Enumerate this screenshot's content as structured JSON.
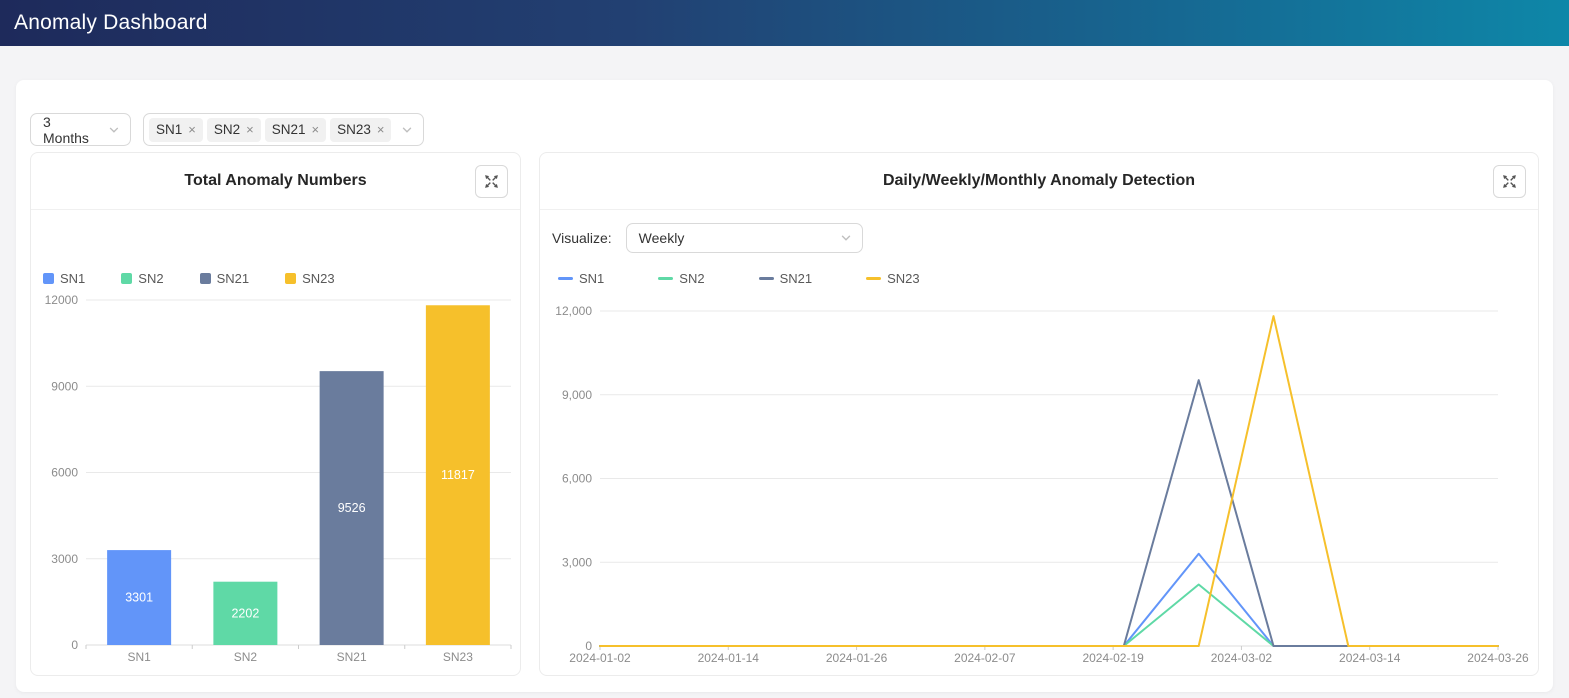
{
  "header": {
    "title": "Anomaly Dashboard"
  },
  "filters": {
    "period": {
      "value": "3 Months",
      "chevron_icon": "chevron-down"
    },
    "series": {
      "tags": [
        "SN1",
        "SN2",
        "SN21",
        "SN23"
      ],
      "remove_icon": "×",
      "chevron_icon": "chevron-down"
    }
  },
  "cards": {
    "total": {
      "title": "Total Anomaly Numbers",
      "expand_icon": "fullscreen-expand"
    },
    "detection": {
      "title": "Daily/Weekly/Monthly Anomaly Detection",
      "visualize_label": "Visualize:",
      "visualize_value": "Weekly",
      "expand_icon": "fullscreen-expand"
    }
  },
  "palette": {
    "SN1": "#6295F9",
    "SN2": "#5FD9A6",
    "SN21": "#6A7C9D",
    "SN23": "#F6C02B"
  },
  "colors": {
    "grid": "#e9e9e9",
    "axis_line": "#dddddd",
    "tick": "#cccccc",
    "axis_text": "#8c8c8c",
    "bar_value_text": "#ffffff"
  },
  "chart_data": [
    {
      "type": "bar",
      "title": "Total Anomaly Numbers",
      "categories": [
        "SN1",
        "SN2",
        "SN21",
        "SN23"
      ],
      "values": [
        3301,
        2202,
        9526,
        11817
      ],
      "data_labels": [
        "3301",
        "2202",
        "9526",
        "11817"
      ],
      "legend": [
        "SN1",
        "SN2",
        "SN21",
        "SN23"
      ],
      "legend_position": "top-left",
      "xlabel": "",
      "ylabel": "",
      "ylim": [
        0,
        12000
      ],
      "yticks": [
        0,
        3000,
        6000,
        9000,
        12000
      ],
      "ytick_labels": [
        "0",
        "3000",
        "6000",
        "9000",
        "12000"
      ],
      "grid": true
    },
    {
      "type": "line",
      "title": "Daily/Weekly/Monthly Anomaly Detection",
      "x": [
        "2024-01-02",
        "2024-01-09",
        "2024-01-16",
        "2024-01-23",
        "2024-01-30",
        "2024-02-06",
        "2024-02-13",
        "2024-02-20",
        "2024-02-27",
        "2024-03-05",
        "2024-03-12",
        "2024-03-19",
        "2024-03-26"
      ],
      "series": [
        {
          "name": "SN1",
          "values": [
            0,
            0,
            0,
            0,
            0,
            0,
            0,
            0,
            3301,
            0,
            0,
            0,
            0
          ]
        },
        {
          "name": "SN2",
          "values": [
            0,
            0,
            0,
            0,
            0,
            0,
            0,
            0,
            2202,
            0,
            0,
            0,
            0
          ]
        },
        {
          "name": "SN21",
          "values": [
            0,
            0,
            0,
            0,
            0,
            0,
            0,
            0,
            9526,
            0,
            0,
            0,
            0
          ]
        },
        {
          "name": "SN23",
          "values": [
            0,
            0,
            0,
            0,
            0,
            0,
            0,
            0,
            0,
            11817,
            0,
            0,
            0
          ]
        }
      ],
      "x_axis_labels": [
        "2024-01-02",
        "2024-01-14",
        "2024-01-26",
        "2024-02-07",
        "2024-02-19",
        "2024-03-02",
        "2024-03-14",
        "2024-03-26"
      ],
      "legend": [
        "SN1",
        "SN2",
        "SN21",
        "SN23"
      ],
      "legend_position": "top-left",
      "xlabel": "",
      "ylabel": "",
      "ylim": [
        0,
        12000
      ],
      "yticks": [
        0,
        3000,
        6000,
        9000,
        12000
      ],
      "ytick_labels": [
        "0",
        "3,000",
        "6,000",
        "9,000",
        "12,000"
      ],
      "grid": true
    }
  ]
}
